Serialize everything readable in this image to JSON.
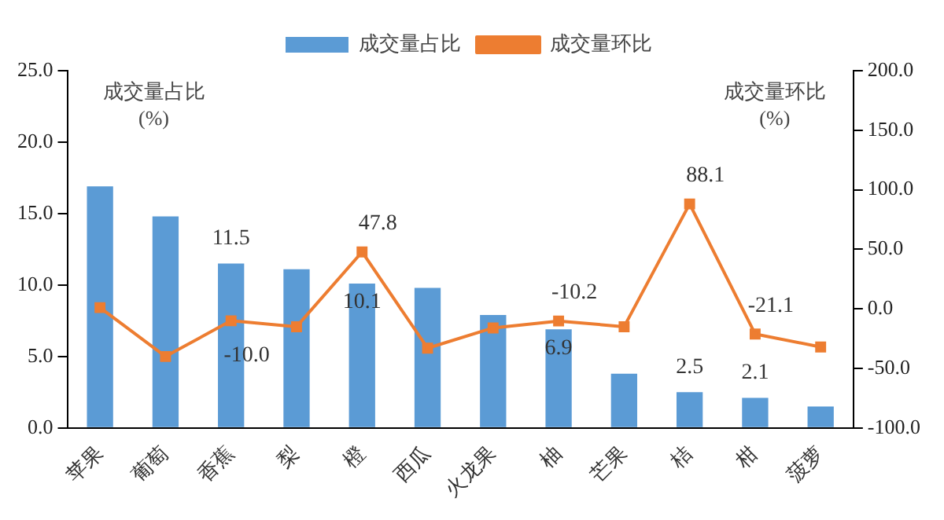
{
  "chart_data": {
    "type": "bar",
    "ylabel": "成交量占比\n(%)",
    "y2label": "成交量环比\n(%)",
    "categories": [
      "苹果",
      "葡萄",
      "香蕉",
      "梨",
      "橙",
      "西瓜",
      "火龙果",
      "柚",
      "芒果",
      "桔",
      "柑",
      "菠萝"
    ],
    "series": [
      {
        "name": "成交量占比",
        "color": "#5b9bd5",
        "values": [
          16.9,
          14.8,
          11.5,
          11.1,
          10.1,
          9.8,
          7.9,
          6.9,
          3.8,
          2.5,
          2.1,
          1.5
        ],
        "value_labels": [
          null,
          null,
          "11.5",
          null,
          "10.1",
          null,
          null,
          "6.9",
          null,
          "2.5",
          "2.1",
          null
        ]
      },
      {
        "name": "成交量环比",
        "type": "line",
        "axis": "y2",
        "color": "#ed7d31",
        "marker": "square",
        "values": [
          1,
          -40,
          -10.0,
          -15,
          47.8,
          -33,
          -16,
          -10.2,
          -15,
          88.1,
          -21.1,
          -32
        ],
        "value_labels": [
          null,
          null,
          "-10.0",
          null,
          "47.8",
          null,
          null,
          "-10.2",
          null,
          "88.1",
          "-21.1",
          null
        ]
      }
    ],
    "ylim": [
      0,
      25
    ],
    "yticks": [
      {
        "value": 0,
        "label": "0.0"
      },
      {
        "value": 5,
        "label": "5.0"
      },
      {
        "value": 10,
        "label": "10.0"
      },
      {
        "value": 15,
        "label": "15.0"
      },
      {
        "value": 20,
        "label": "20.0"
      },
      {
        "value": 25,
        "label": "25.0"
      }
    ],
    "y2lim": [
      -100,
      200
    ],
    "y2ticks": [
      {
        "value": -100,
        "label": "-100.0"
      },
      {
        "value": -50,
        "label": "-50.0"
      },
      {
        "value": 0,
        "label": "0.0"
      },
      {
        "value": 50,
        "label": "50.0"
      },
      {
        "value": 100,
        "label": "100.0"
      },
      {
        "value": 150,
        "label": "150.0"
      },
      {
        "value": 200,
        "label": "200.0"
      }
    ],
    "legend": "top",
    "grid": false
  }
}
